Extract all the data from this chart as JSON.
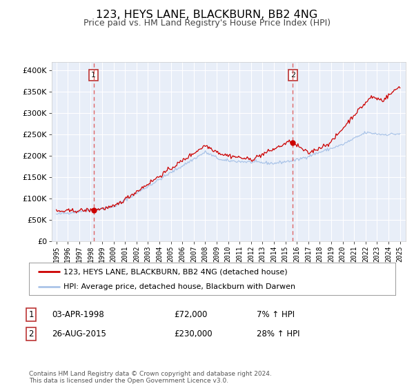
{
  "title": "123, HEYS LANE, BLACKBURN, BB2 4NG",
  "subtitle": "Price paid vs. HM Land Registry's House Price Index (HPI)",
  "title_fontsize": 11.5,
  "subtitle_fontsize": 9,
  "background_color": "#ffffff",
  "plot_bg_color": "#e8eef8",
  "grid_color": "#ffffff",
  "hpi_color": "#aac4e8",
  "price_color": "#cc0000",
  "marker_color": "#cc0000",
  "vline_color": "#dd5555",
  "legend_label_price": "123, HEYS LANE, BLACKBURN, BB2 4NG (detached house)",
  "legend_label_hpi": "HPI: Average price, detached house, Blackburn with Darwen",
  "sale1_date_x": 1998.25,
  "sale1_price": 72000,
  "sale1_label": "1",
  "sale1_text": "03-APR-1998",
  "sale1_amount": "£72,000",
  "sale1_pct": "7% ↑ HPI",
  "sale2_date_x": 2015.65,
  "sale2_price": 230000,
  "sale2_label": "2",
  "sale2_text": "26-AUG-2015",
  "sale2_amount": "£230,000",
  "sale2_pct": "28% ↑ HPI",
  "ylim": [
    0,
    420000
  ],
  "xlim_start": 1994.6,
  "xlim_end": 2025.5,
  "footer": "Contains HM Land Registry data © Crown copyright and database right 2024.\nThis data is licensed under the Open Government Licence v3.0.",
  "yticks": [
    0,
    50000,
    100000,
    150000,
    200000,
    250000,
    300000,
    350000,
    400000
  ],
  "ytick_labels": [
    "£0",
    "£50K",
    "£100K",
    "£150K",
    "£200K",
    "£250K",
    "£300K",
    "£350K",
    "£400K"
  ]
}
